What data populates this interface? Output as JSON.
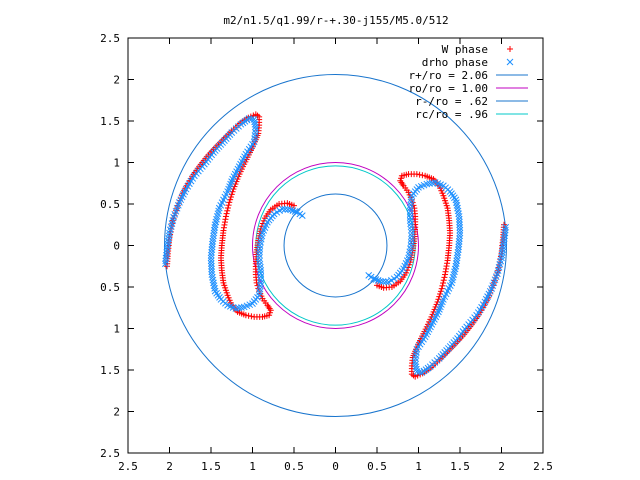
{
  "chart_data": {
    "type": "scatter",
    "title": "m2/n1.5/q1.99/r-+.30-j155/M5.0/512",
    "xlim": [
      -2.5,
      2.5
    ],
    "ylim": [
      -2.5,
      2.5
    ],
    "x_ticks": [
      -2.5,
      -2,
      -1.5,
      -1,
      -0.5,
      0,
      0.5,
      1,
      1.5,
      2,
      2.5
    ],
    "y_ticks": [
      -2.5,
      -2,
      -1.5,
      -1,
      -0.5,
      0,
      0.5,
      1,
      1.5,
      2,
      2.5
    ],
    "x_tick_labels": [
      "2.5",
      "2",
      "1.5",
      "1",
      "0.5",
      "0",
      "0.5",
      "1",
      "1.5",
      "2",
      "2.5"
    ],
    "y_tick_labels": [
      "2.5",
      "2",
      "1.5",
      "1",
      "0.5",
      "0",
      "0.5",
      "1",
      "1.5",
      "2",
      "2.5"
    ],
    "legend_position": "top-right",
    "series": [
      {
        "name": "W phase",
        "marker": "plus",
        "color": "#ff0000",
        "arms": [
          {
            "points": [
              [
                -2.03,
                -0.25
              ],
              [
                -2.02,
                -0.1
              ],
              [
                -2.0,
                0.1
              ],
              [
                -1.96,
                0.3
              ],
              [
                -1.9,
                0.48
              ],
              [
                -1.84,
                0.63
              ],
              [
                -1.76,
                0.78
              ],
              [
                -1.66,
                0.93
              ],
              [
                -1.55,
                1.07
              ],
              [
                -1.45,
                1.18
              ],
              [
                -1.35,
                1.28
              ],
              [
                -1.25,
                1.38
              ],
              [
                -1.15,
                1.47
              ],
              [
                -1.05,
                1.54
              ],
              [
                -0.96,
                1.58
              ],
              [
                -0.92,
                1.55
              ],
              [
                -0.92,
                1.45
              ],
              [
                -0.93,
                1.35
              ],
              [
                -0.97,
                1.25
              ],
              [
                -1.03,
                1.12
              ],
              [
                -1.1,
                0.98
              ],
              [
                -1.17,
                0.83
              ],
              [
                -1.23,
                0.68
              ],
              [
                -1.28,
                0.52
              ],
              [
                -1.32,
                0.35
              ],
              [
                -1.35,
                0.18
              ],
              [
                -1.37,
                0.0
              ],
              [
                -1.38,
                -0.15
              ],
              [
                -1.37,
                -0.3
              ],
              [
                -1.35,
                -0.45
              ],
              [
                -1.3,
                -0.6
              ],
              [
                -1.25,
                -0.72
              ],
              [
                -1.18,
                -0.8
              ],
              [
                -1.08,
                -0.84
              ],
              [
                -0.98,
                -0.86
              ],
              [
                -0.88,
                -0.86
              ],
              [
                -0.8,
                -0.84
              ],
              [
                -0.78,
                -0.78
              ],
              [
                -0.82,
                -0.72
              ],
              [
                -0.88,
                -0.64
              ],
              [
                -0.92,
                -0.55
              ],
              [
                -0.95,
                -0.45
              ],
              [
                -0.96,
                -0.35
              ],
              [
                -0.96,
                -0.22
              ],
              [
                -0.95,
                -0.08
              ],
              [
                -0.93,
                0.06
              ],
              [
                -0.9,
                0.2
              ],
              [
                -0.85,
                0.33
              ],
              [
                -0.78,
                0.43
              ],
              [
                -0.68,
                0.5
              ],
              [
                -0.58,
                0.51
              ],
              [
                -0.5,
                0.48
              ]
            ]
          },
          {
            "points": [
              [
                2.03,
                0.25
              ],
              [
                2.02,
                0.1
              ],
              [
                2.0,
                -0.1
              ],
              [
                1.96,
                -0.3
              ],
              [
                1.9,
                -0.48
              ],
              [
                1.84,
                -0.63
              ],
              [
                1.76,
                -0.78
              ],
              [
                1.66,
                -0.93
              ],
              [
                1.55,
                -1.07
              ],
              [
                1.45,
                -1.18
              ],
              [
                1.35,
                -1.28
              ],
              [
                1.25,
                -1.38
              ],
              [
                1.15,
                -1.47
              ],
              [
                1.05,
                -1.54
              ],
              [
                0.96,
                -1.58
              ],
              [
                0.92,
                -1.55
              ],
              [
                0.92,
                -1.45
              ],
              [
                0.93,
                -1.35
              ],
              [
                0.97,
                -1.25
              ],
              [
                1.03,
                -1.12
              ],
              [
                1.1,
                -0.98
              ],
              [
                1.17,
                -0.83
              ],
              [
                1.23,
                -0.68
              ],
              [
                1.28,
                -0.52
              ],
              [
                1.32,
                -0.35
              ],
              [
                1.35,
                -0.18
              ],
              [
                1.37,
                0.0
              ],
              [
                1.38,
                0.15
              ],
              [
                1.37,
                0.3
              ],
              [
                1.35,
                0.45
              ],
              [
                1.3,
                0.6
              ],
              [
                1.25,
                0.72
              ],
              [
                1.18,
                0.8
              ],
              [
                1.08,
                0.84
              ],
              [
                0.98,
                0.86
              ],
              [
                0.88,
                0.86
              ],
              [
                0.8,
                0.84
              ],
              [
                0.78,
                0.78
              ],
              [
                0.82,
                0.72
              ],
              [
                0.88,
                0.64
              ],
              [
                0.92,
                0.55
              ],
              [
                0.95,
                0.45
              ],
              [
                0.96,
                0.35
              ],
              [
                0.96,
                0.22
              ],
              [
                0.95,
                0.08
              ],
              [
                0.93,
                -0.06
              ],
              [
                0.9,
                -0.2
              ],
              [
                0.85,
                -0.33
              ],
              [
                0.78,
                -0.43
              ],
              [
                0.68,
                -0.5
              ],
              [
                0.58,
                -0.51
              ],
              [
                0.5,
                -0.48
              ]
            ]
          }
        ]
      },
      {
        "name": "drho phase",
        "marker": "cross",
        "color": "#1e90ff",
        "arms": [
          {
            "points": [
              [
                -2.05,
                -0.22
              ],
              [
                -2.03,
                -0.05
              ],
              [
                -2.0,
                0.15
              ],
              [
                -1.95,
                0.34
              ],
              [
                -1.88,
                0.52
              ],
              [
                -1.8,
                0.68
              ],
              [
                -1.7,
                0.84
              ],
              [
                -1.58,
                0.98
              ],
              [
                -1.47,
                1.12
              ],
              [
                -1.36,
                1.24
              ],
              [
                -1.25,
                1.36
              ],
              [
                -1.14,
                1.46
              ],
              [
                -1.04,
                1.53
              ],
              [
                -0.98,
                1.52
              ],
              [
                -0.96,
                1.4
              ],
              [
                -0.98,
                1.25
              ],
              [
                -1.08,
                1.1
              ],
              [
                -1.16,
                0.95
              ],
              [
                -1.24,
                0.8
              ],
              [
                -1.3,
                0.65
              ],
              [
                -1.4,
                0.45
              ],
              [
                -1.45,
                0.25
              ],
              [
                -1.48,
                0.05
              ],
              [
                -1.5,
                -0.15
              ],
              [
                -1.49,
                -0.35
              ],
              [
                -1.45,
                -0.55
              ],
              [
                -1.38,
                -0.65
              ],
              [
                -1.3,
                -0.72
              ],
              [
                -1.2,
                -0.76
              ],
              [
                -1.1,
                -0.74
              ],
              [
                -1.0,
                -0.7
              ],
              [
                -0.92,
                -0.6
              ],
              [
                -0.9,
                -0.45
              ],
              [
                -0.9,
                -0.3
              ],
              [
                -0.92,
                -0.15
              ],
              [
                -0.91,
                0.0
              ],
              [
                -0.88,
                0.15
              ],
              [
                -0.82,
                0.28
              ],
              [
                -0.74,
                0.38
              ],
              [
                -0.64,
                0.44
              ],
              [
                -0.54,
                0.43
              ],
              [
                -0.46,
                0.4
              ],
              [
                -0.4,
                0.36
              ]
            ]
          },
          {
            "points": [
              [
                2.05,
                0.22
              ],
              [
                2.03,
                0.05
              ],
              [
                2.0,
                -0.15
              ],
              [
                1.95,
                -0.34
              ],
              [
                1.88,
                -0.52
              ],
              [
                1.8,
                -0.68
              ],
              [
                1.7,
                -0.84
              ],
              [
                1.58,
                -0.98
              ],
              [
                1.47,
                -1.12
              ],
              [
                1.36,
                -1.24
              ],
              [
                1.25,
                -1.36
              ],
              [
                1.14,
                -1.46
              ],
              [
                1.04,
                -1.53
              ],
              [
                0.98,
                -1.52
              ],
              [
                0.96,
                -1.4
              ],
              [
                0.98,
                -1.25
              ],
              [
                1.08,
                -1.1
              ],
              [
                1.16,
                -0.95
              ],
              [
                1.24,
                -0.8
              ],
              [
                1.3,
                -0.65
              ],
              [
                1.4,
                -0.45
              ],
              [
                1.45,
                -0.25
              ],
              [
                1.48,
                -0.05
              ],
              [
                1.5,
                0.15
              ],
              [
                1.49,
                0.35
              ],
              [
                1.45,
                0.55
              ],
              [
                1.38,
                0.65
              ],
              [
                1.3,
                0.72
              ],
              [
                1.2,
                0.76
              ],
              [
                1.1,
                0.74
              ],
              [
                1.0,
                0.7
              ],
              [
                0.92,
                0.6
              ],
              [
                0.9,
                0.45
              ],
              [
                0.9,
                0.3
              ],
              [
                0.92,
                0.15
              ],
              [
                0.91,
                0.0
              ],
              [
                0.88,
                -0.15
              ],
              [
                0.82,
                -0.28
              ],
              [
                0.74,
                -0.38
              ],
              [
                0.64,
                -0.44
              ],
              [
                0.54,
                -0.43
              ],
              [
                0.46,
                -0.4
              ],
              [
                0.4,
                -0.36
              ]
            ]
          }
        ]
      }
    ],
    "circles": [
      {
        "name": "r+/ro = 2.06",
        "radius": 2.06,
        "color": "#1874cd"
      },
      {
        "name": "ro/ro = 1.00",
        "radius": 1.0,
        "color": "#c000c0"
      },
      {
        "name": "r-/ro = .62",
        "radius": 0.62,
        "color": "#1874cd"
      },
      {
        "name": "rc/ro = .96",
        "radius": 0.96,
        "color": "#00c8c8"
      }
    ]
  }
}
